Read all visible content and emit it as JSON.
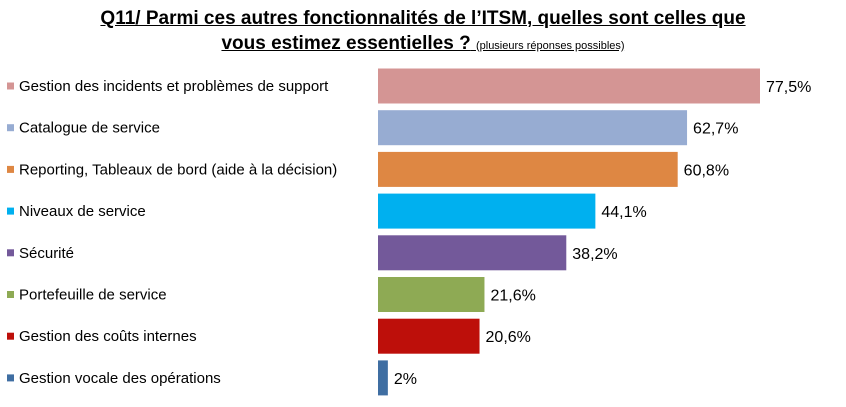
{
  "title": {
    "line1": "Q11/ Parmi ces autres fonctionnalités de l’ITSM, quelles sont celles que",
    "line2": "vous estimez essentielles ?",
    "note": "(plusieurs réponses possibles)"
  },
  "chart_data": {
    "type": "bar",
    "orientation": "horizontal",
    "categories": [
      "Gestion des incidents et problèmes de support",
      "Catalogue de service",
      "Reporting, Tableaux de bord (aide à la décision)",
      "Niveaux de service",
      "Sécurité",
      "Portefeuille de service",
      "Gestion des coûts internes",
      "Gestion vocale des opérations"
    ],
    "values": [
      77.5,
      62.7,
      60.8,
      44.1,
      38.2,
      21.6,
      20.6,
      2
    ],
    "value_labels": [
      "77,5%",
      "62,7%",
      "60,8%",
      "44,1%",
      "38,2%",
      "21,6%",
      "20,6%",
      "2%"
    ],
    "colors": [
      "#d49594",
      "#97acd2",
      "#de8743",
      "#00b0ef",
      "#73599a",
      "#8eaa54",
      "#bd0f0a",
      "#3f6ea2"
    ],
    "xlim": [
      0,
      100
    ],
    "grid": false,
    "legend": "none"
  }
}
